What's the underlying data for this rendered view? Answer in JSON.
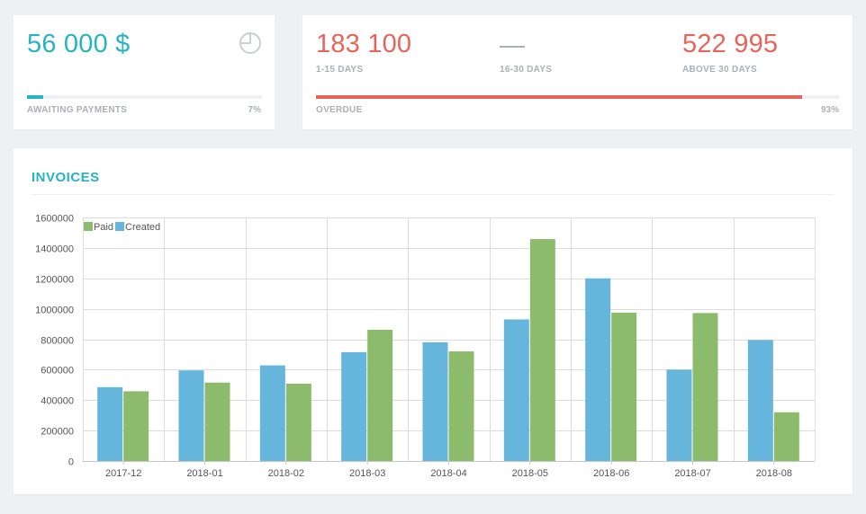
{
  "awaiting": {
    "amount": "56 000 $",
    "label": "AWAITING PAYMENTS",
    "percent_text": "7%",
    "progress": 0.07,
    "icon": "pie-chart-icon",
    "color": "#26b3c3"
  },
  "overdue": {
    "buckets": [
      {
        "value": "183 100",
        "label": "1-15 DAYS"
      },
      {
        "value": "",
        "label": "16-30 DAYS"
      },
      {
        "value": "522 995",
        "label": "ABOVE 30 DAYS"
      }
    ],
    "label": "OVERDUE",
    "percent_text": "93%",
    "progress": 0.93,
    "color": "#e8645a"
  },
  "invoices": {
    "title": "INVOICES"
  },
  "chart_data": {
    "type": "bar",
    "categories": [
      "2017-12",
      "2018-01",
      "2018-02",
      "2018-03",
      "2018-04",
      "2018-05",
      "2018-06",
      "2018-07",
      "2018-08"
    ],
    "series": [
      {
        "name": "Created",
        "color": "#66b5dc",
        "values": [
          485000,
          595000,
          628000,
          715000,
          780000,
          930000,
          1200000,
          600000,
          795000
        ]
      },
      {
        "name": "Paid",
        "color": "#8cbb6c",
        "values": [
          458000,
          515000,
          508000,
          862000,
          720000,
          1458000,
          975000,
          972000,
          320000
        ]
      }
    ],
    "legend": [
      "Paid",
      "Created"
    ],
    "ylim": [
      0,
      1600000
    ],
    "yticks": [
      "0",
      "200000",
      "400000",
      "600000",
      "800000",
      "1000000",
      "1200000",
      "1400000",
      "1600000"
    ],
    "legend_position": "top-left",
    "grid": true
  }
}
